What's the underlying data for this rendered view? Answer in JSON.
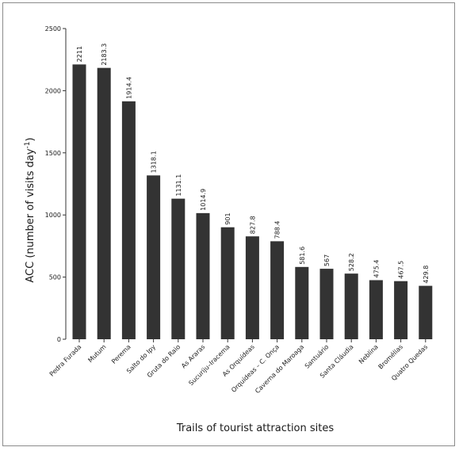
{
  "chart_data": {
    "type": "bar",
    "title": "",
    "xlabel": "Trails of tourist attraction sites",
    "ylabel_main": "ACC (number of visits day",
    "ylabel_sup": "-1",
    "ylabel_close": ")",
    "ylim": [
      0,
      2500
    ],
    "yticks": [
      0,
      500,
      1000,
      1500,
      2000,
      2500
    ],
    "grid": false,
    "legend": "none",
    "bar_color": "#333333",
    "categories": [
      "Pedra Furada",
      "Mutum",
      "Perema",
      "Salto do Ipy",
      "Gruta do Raio",
      "As Araras",
      "Sucuriju–Iracema",
      "As Orquídeas",
      "Orquídeas – C. Onça",
      "Caverna do Maroaga",
      "Santuário",
      "Santa Cláudia",
      "Neblina",
      "Bromélias",
      "Quatro Quedas"
    ],
    "values": [
      2211,
      2183.3,
      1914.4,
      1318.1,
      1131.1,
      1014.9,
      901,
      827.8,
      788.4,
      581.6,
      567,
      528.2,
      475.4,
      467.5,
      429.8
    ],
    "value_labels": [
      "2211",
      "2183.3",
      "1914.4",
      "1318.1",
      "1131.1",
      "1014.9",
      "901",
      "827.8",
      "788.4",
      "581.6",
      "567",
      "528.2",
      "475.4",
      "467.5",
      "429.8"
    ]
  }
}
